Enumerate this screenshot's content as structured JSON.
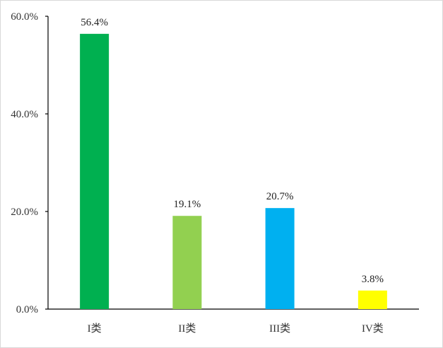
{
  "chart_data": {
    "type": "bar",
    "categories": [
      "I类",
      "II类",
      "III类",
      "IV类"
    ],
    "values": [
      56.4,
      19.1,
      20.7,
      3.8
    ],
    "data_labels": [
      "56.4%",
      "19.1%",
      "20.7%",
      "3.8%"
    ],
    "colors": [
      "#00b050",
      "#92d050",
      "#00b0f0",
      "#ffff00"
    ],
    "ylim": [
      0,
      60
    ],
    "yticks": [
      0,
      20,
      40,
      60
    ],
    "ytick_labels": [
      "0.0%",
      "20.0%",
      "40.0%",
      "60.0%"
    ],
    "title": "",
    "xlabel": "",
    "ylabel": "",
    "grid": false,
    "legend": false
  }
}
